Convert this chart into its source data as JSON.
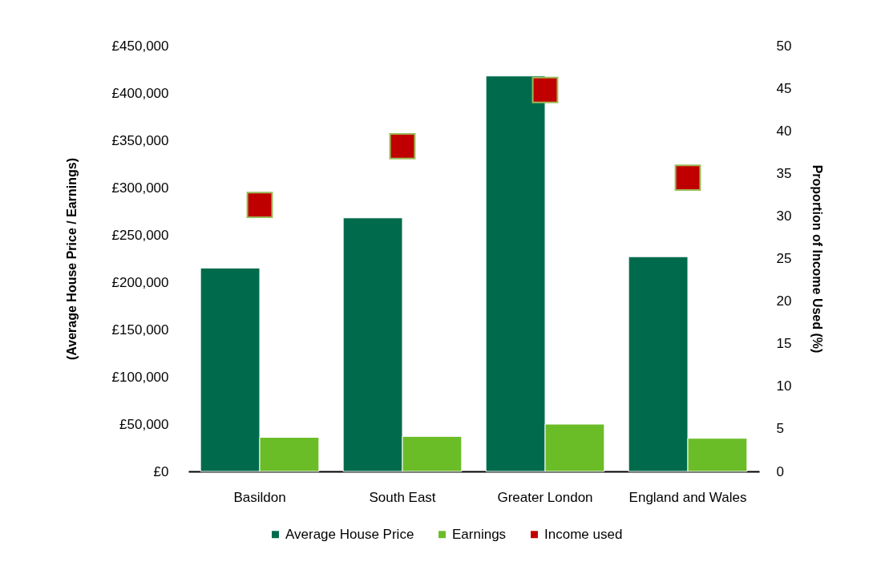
{
  "chart_data": {
    "type": "bar",
    "categories": [
      "Basildon",
      "South East",
      "Greater London",
      "England and Wales"
    ],
    "ylabel": "(Average House Price / Earnings)",
    "y2label": "Proportion of Income Used (%)",
    "ylim": [
      0,
      450000
    ],
    "yticks": [
      {
        "value": 0,
        "label": "£0"
      },
      {
        "value": 50000,
        "label": "£50,000"
      },
      {
        "value": 100000,
        "label": "£100,000"
      },
      {
        "value": 150000,
        "label": "£150,000"
      },
      {
        "value": 200000,
        "label": "£200,000"
      },
      {
        "value": 250000,
        "label": "£250,000"
      },
      {
        "value": 300000,
        "label": "£300,000"
      },
      {
        "value": 350000,
        "label": "£350,000"
      },
      {
        "value": 400000,
        "label": "£400,000"
      },
      {
        "value": 450000,
        "label": "£450,000"
      }
    ],
    "y2lim": [
      0,
      50
    ],
    "y2ticks": [
      0,
      5,
      10,
      15,
      20,
      25,
      30,
      35,
      40,
      45,
      50
    ],
    "series": [
      {
        "name": "Average House Price",
        "color": "#006b4c",
        "values": [
          215000,
          268000,
          418000,
          227000
        ]
      },
      {
        "name": "Earnings",
        "color": "#6bbd28",
        "values": [
          36000,
          37000,
          50000,
          35000
        ]
      },
      {
        "name": "Income used",
        "type": "scatter",
        "axis": "y2",
        "marker": "square",
        "color": "#c00000",
        "values": [
          31.3,
          38.2,
          44.8,
          34.5
        ]
      }
    ],
    "legend": "bottom",
    "grid": false
  }
}
